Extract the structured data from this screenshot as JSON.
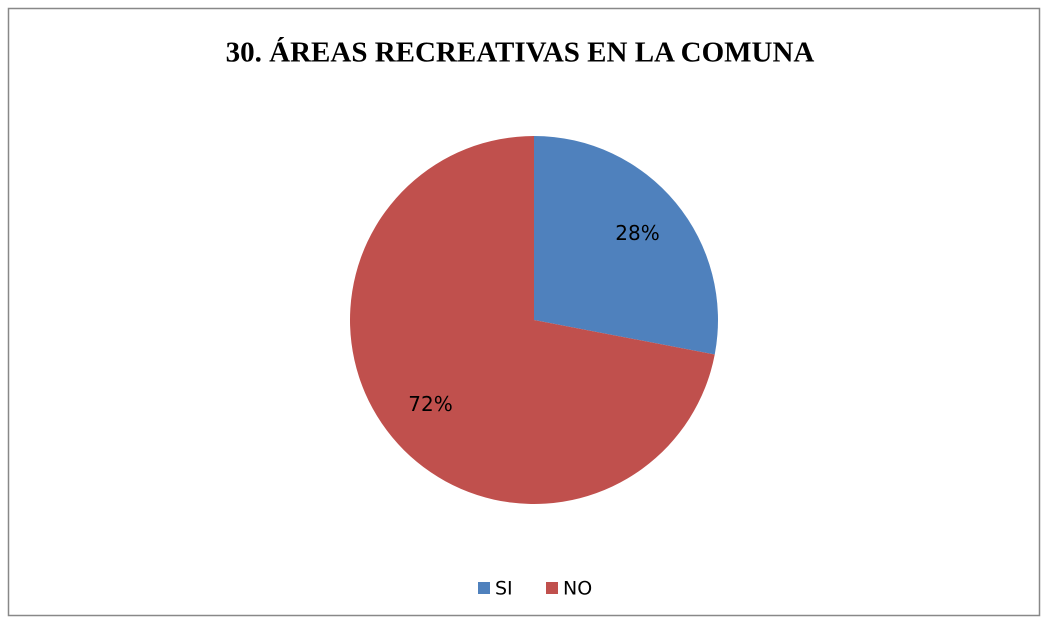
{
  "chart_data": {
    "type": "pie",
    "title": "30. ÁREAS RECREATIVAS EN LA COMUNA",
    "categories": [
      "SI",
      "NO"
    ],
    "values": [
      28,
      72
    ],
    "value_labels": [
      "28%",
      "72%"
    ],
    "colors": [
      "#4f81bd",
      "#c0504d"
    ],
    "legend": "bottom"
  }
}
